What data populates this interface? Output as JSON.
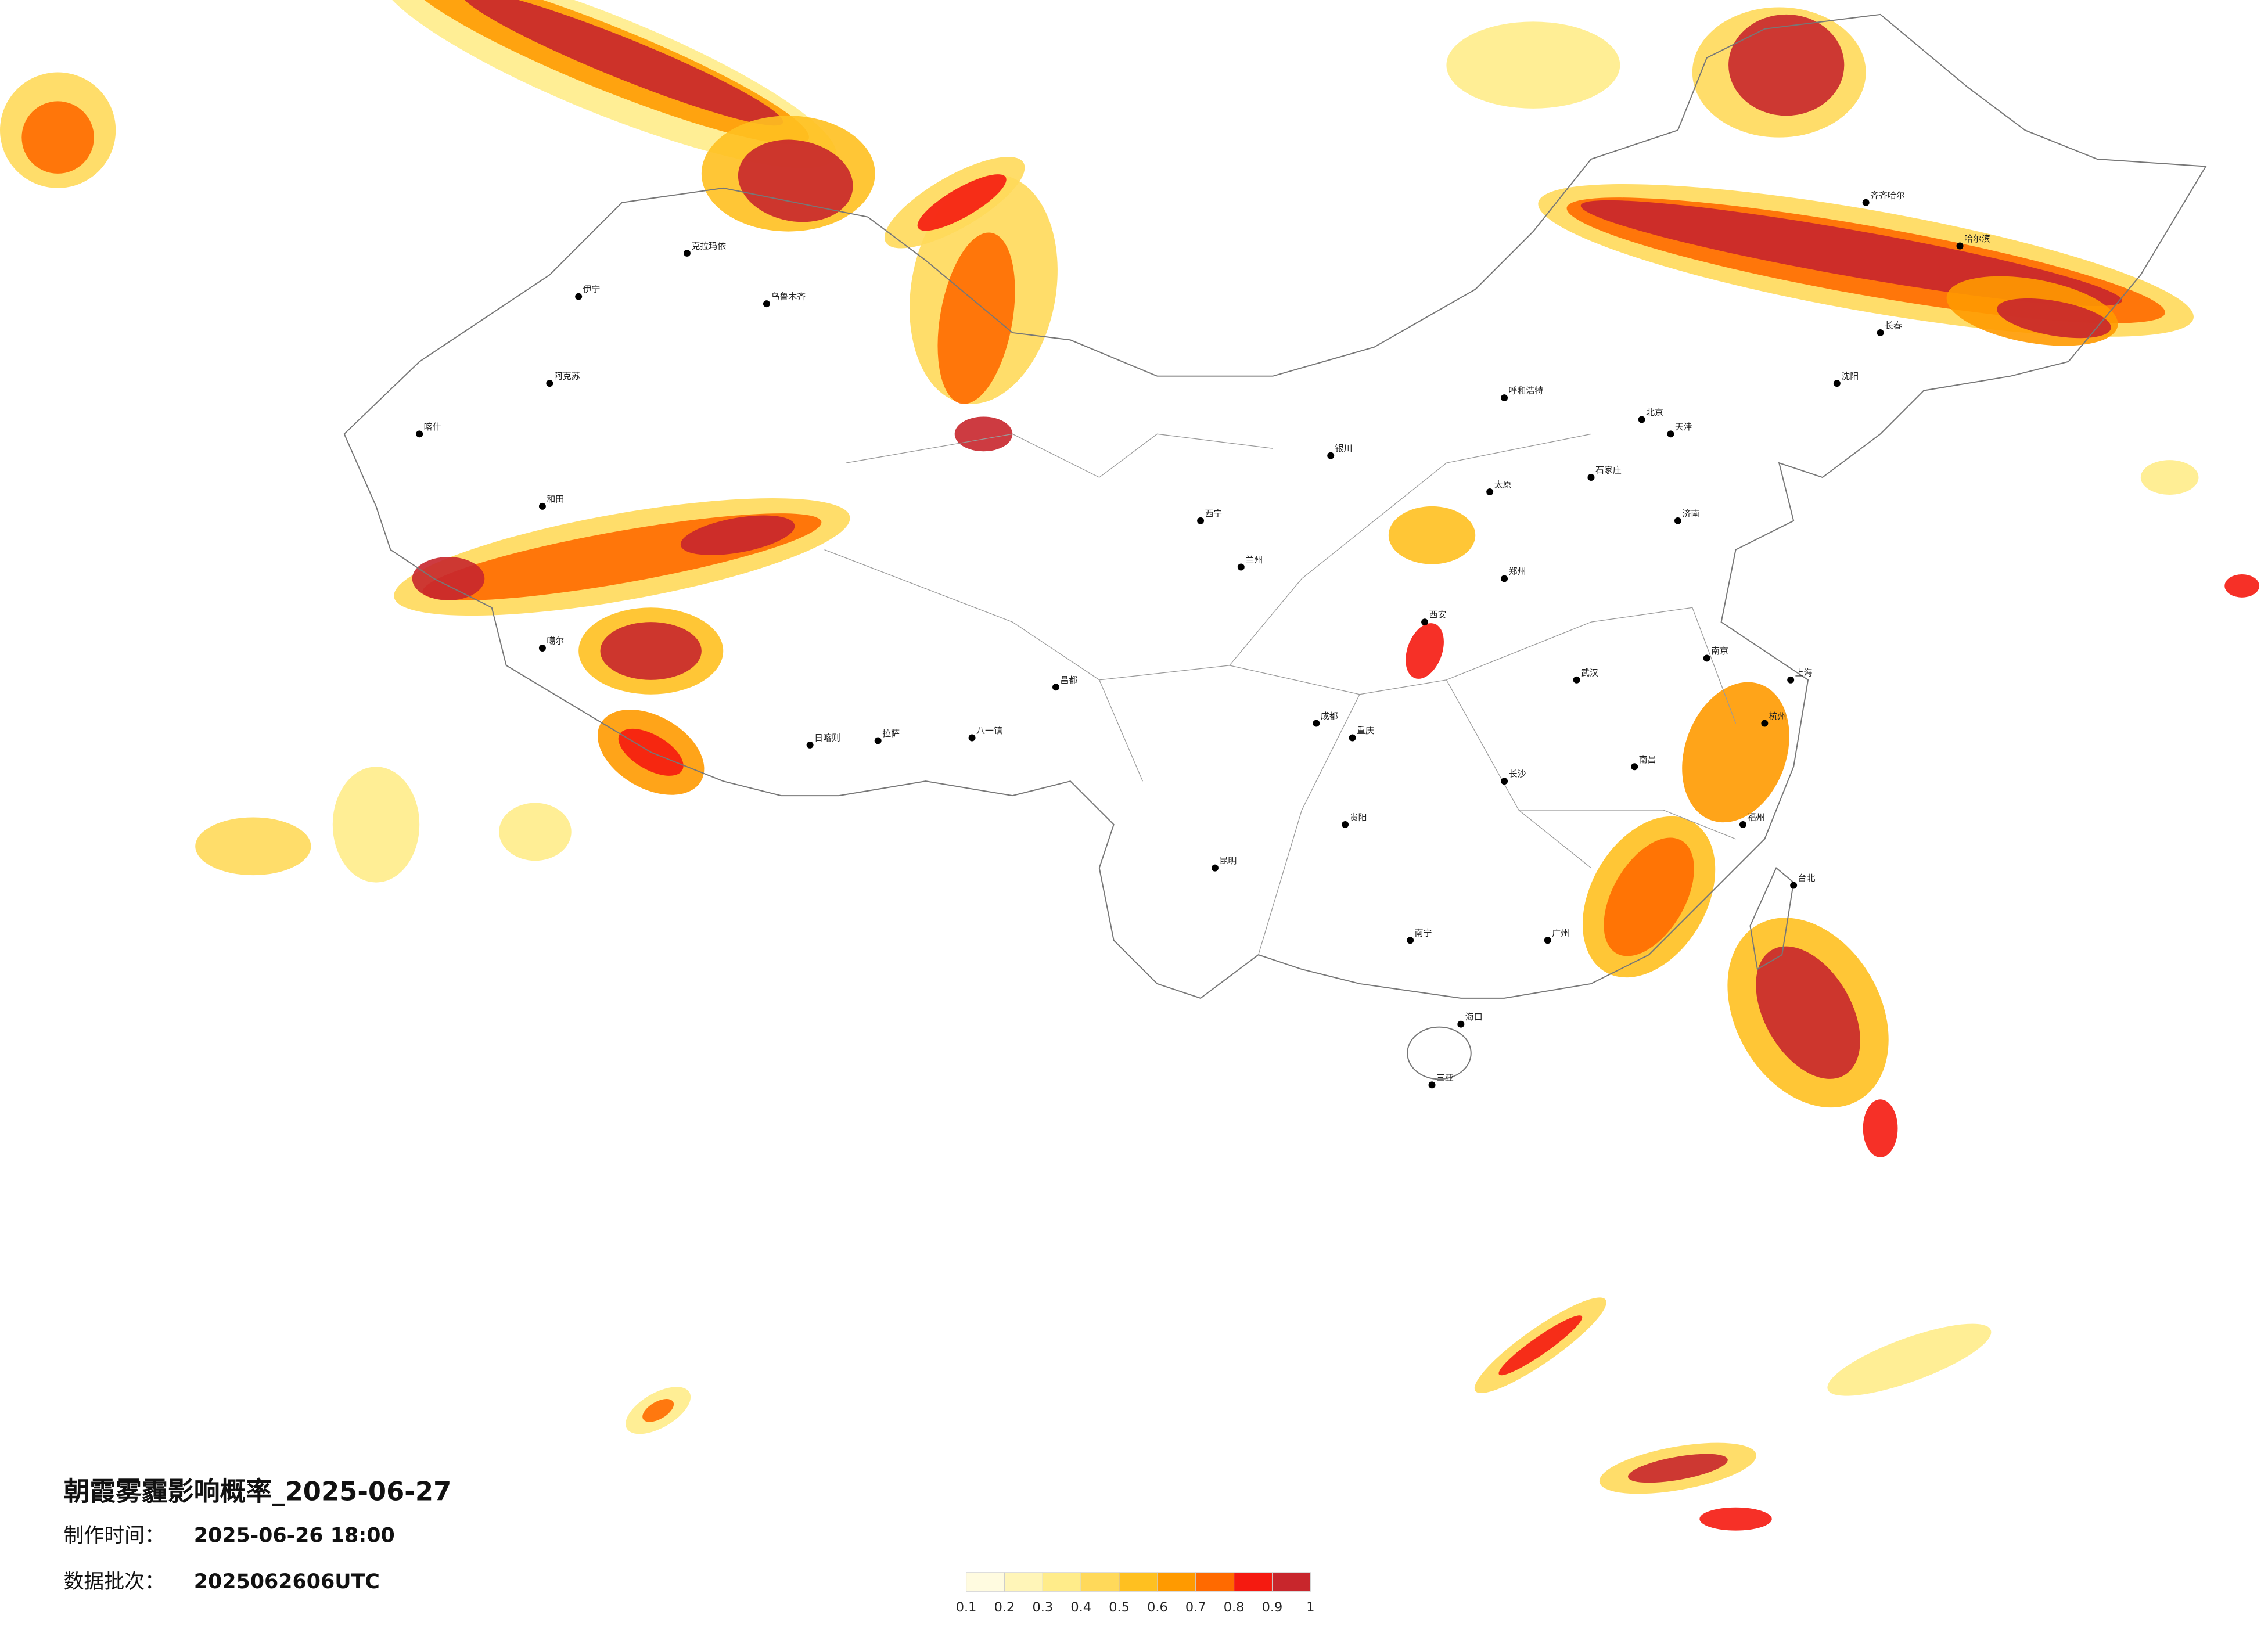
{
  "title": "朝霞雾霾影响概率_2025-06-27",
  "issue_label": "制作时间：",
  "issue_time": "2025-06-26 18:00",
  "batch_label": "数据批次：",
  "batch": "2025062606UTC",
  "legend": {
    "ticks": [
      0.1,
      0.2,
      0.3,
      0.4,
      0.5,
      0.6,
      0.7,
      0.8,
      0.9,
      1
    ],
    "colors": [
      "#fffbe0",
      "#fff5b8",
      "#ffec8a",
      "#ffd95a",
      "#ffc020",
      "#ff9a00",
      "#ff6a00",
      "#f51a10",
      "#c8262c"
    ]
  },
  "cities": [
    "克拉玛依",
    "伊宁",
    "乌鲁木齐",
    "阿克苏",
    "喀什",
    "和田",
    "噶尔",
    "日喀则",
    "拉萨",
    "八一镇",
    "昌都",
    "西宁",
    "兰州",
    "银川",
    "呼和浩特",
    "太原",
    "石家庄",
    "北京",
    "天津",
    "济南",
    "郑州",
    "西安",
    "成都",
    "重庆",
    "武汉",
    "南京",
    "上海",
    "杭州",
    "南昌",
    "长沙",
    "福州",
    "贵阳",
    "昆明",
    "南宁",
    "广州",
    "海口",
    "三亚",
    "台北",
    "沈阳",
    "长春",
    "哈尔滨",
    "齐齐哈尔"
  ]
}
